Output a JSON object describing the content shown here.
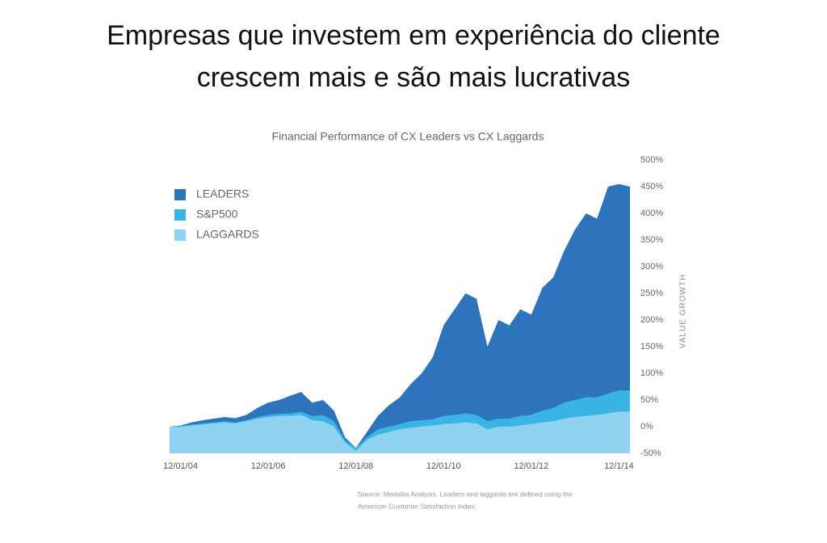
{
  "slide": {
    "title_lines": [
      "Empresas que investem em experiência do cliente",
      "crescem mais e são mais lucrativas"
    ]
  },
  "chart_data": {
    "type": "area",
    "title": "Financial Performance of CX Leaders vs CX Laggards",
    "y_label": "VALUE GROWTH",
    "source_lines": [
      "Source: Medallia Analysis. Leaders and laggards are defined using the",
      "American Customer Satisfaction Index."
    ],
    "categories": [
      null,
      "12/01/04",
      null,
      null,
      null,
      null,
      null,
      null,
      null,
      "12/01/06",
      null,
      null,
      null,
      null,
      null,
      null,
      null,
      "12/01/08",
      null,
      null,
      null,
      null,
      null,
      null,
      null,
      "12/01/10",
      null,
      null,
      null,
      null,
      null,
      null,
      null,
      "12/01/12",
      null,
      null,
      null,
      null,
      null,
      null,
      null,
      "12/1/14",
      null
    ],
    "series": [
      {
        "name": "LEADERS",
        "color": "#2e74bc",
        "values": [
          0,
          2,
          8,
          12,
          15,
          18,
          16,
          22,
          35,
          45,
          50,
          58,
          65,
          45,
          50,
          30,
          -20,
          -40,
          -10,
          20,
          40,
          55,
          80,
          100,
          130,
          190,
          220,
          250,
          240,
          150,
          200,
          190,
          220,
          210,
          260,
          280,
          330,
          370,
          400,
          390,
          450,
          455,
          450
        ]
      },
      {
        "name": "S&P500",
        "color": "#3ab4e5",
        "values": [
          0,
          1,
          4,
          6,
          8,
          10,
          8,
          12,
          18,
          22,
          24,
          25,
          28,
          20,
          22,
          10,
          -25,
          -40,
          -20,
          -5,
          0,
          5,
          10,
          12,
          14,
          20,
          22,
          25,
          22,
          10,
          15,
          15,
          20,
          22,
          30,
          35,
          45,
          50,
          55,
          55,
          62,
          68,
          68
        ]
      },
      {
        "name": "LAGGARDS",
        "color": "#8fd3f0",
        "values": [
          0,
          0,
          2,
          4,
          6,
          8,
          6,
          10,
          15,
          18,
          20,
          20,
          22,
          12,
          10,
          0,
          -30,
          -45,
          -25,
          -15,
          -10,
          -5,
          -2,
          0,
          2,
          5,
          6,
          8,
          6,
          -5,
          0,
          0,
          2,
          5,
          8,
          10,
          15,
          18,
          20,
          22,
          25,
          28,
          28
        ]
      }
    ],
    "ylim": [
      -50,
      500
    ],
    "yticks": [
      {
        "value": 500,
        "label": "500%"
      },
      {
        "value": 450,
        "label": "450%"
      },
      {
        "value": 400,
        "label": "400%"
      },
      {
        "value": 350,
        "label": "350%"
      },
      {
        "value": 300,
        "label": "300%"
      },
      {
        "value": 250,
        "label": "250%"
      },
      {
        "value": 200,
        "label": "200%"
      },
      {
        "value": 150,
        "label": "150%"
      },
      {
        "value": 100,
        "label": "100%"
      },
      {
        "value": 50,
        "label": "50%"
      },
      {
        "value": 0,
        "label": "0%"
      },
      {
        "value": -50,
        "label": "-50%"
      }
    ],
    "legend": "upper left"
  }
}
